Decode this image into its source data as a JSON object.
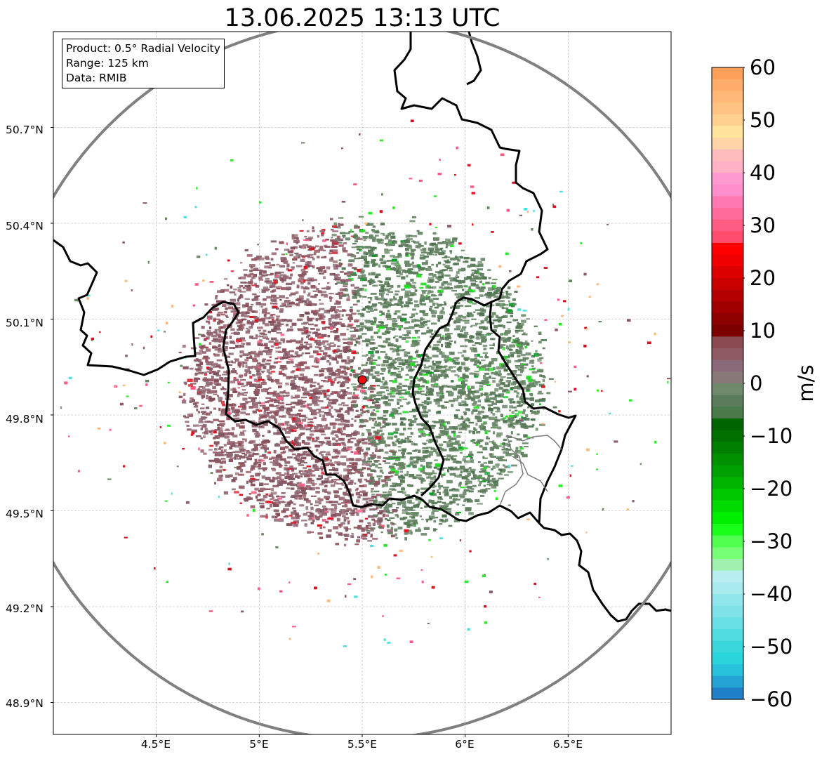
{
  "title": "13.06.2025 13:13 UTC",
  "info": {
    "product": "Product: 0.5° Radial Velocity",
    "range": "Range: 125 km",
    "data": "Data: RMIB"
  },
  "map": {
    "lon_range": [
      4.0,
      7.0
    ],
    "lat_range": [
      48.8,
      51.0
    ],
    "lat_ticks": [
      "50.7°N",
      "50.4°N",
      "50.1°N",
      "49.8°N",
      "49.5°N",
      "49.2°N",
      "48.9°N"
    ],
    "lon_ticks": [
      "4.5°E",
      "5°E",
      "5.5°E",
      "6°E",
      "6.5°E"
    ],
    "radar_site": {
      "lon": 5.5,
      "lat": 49.91
    },
    "range_km": 125,
    "gridlines": true
  },
  "colorbar": {
    "label": "m/s",
    "ticks": [
      "60",
      "50",
      "40",
      "30",
      "20",
      "10",
      "0",
      "−10",
      "−20",
      "−30",
      "−40",
      "−50",
      "−60"
    ],
    "vmin": -60,
    "vmax": 60,
    "colors_top_to_bottom": [
      "#ffa05a",
      "#ffab6a",
      "#ffb878",
      "#ffc484",
      "#ffd18f",
      "#ffe49b",
      "#ffd5a8",
      "#ffbcbc",
      "#ffb2c6",
      "#ff99d0",
      "#ff8ecd",
      "#ff78b2",
      "#ff6c9b",
      "#ff5c84",
      "#ff4c6c",
      "#ff0000",
      "#f00000",
      "#dc0000",
      "#c80000",
      "#b40000",
      "#a00000",
      "#8c0000",
      "#7c0000",
      "#8a4a50",
      "#8f5a63",
      "#8a6a78",
      "#887878",
      "#6e8a6a",
      "#5a7c5a",
      "#4a7a4a",
      "#006400",
      "#007000",
      "#008000",
      "#009000",
      "#00a000",
      "#00b400",
      "#00c800",
      "#00dc00",
      "#00f000",
      "#1aff1a",
      "#50ff50",
      "#78ff78",
      "#a0f0b0",
      "#b8eef0",
      "#a8eaee",
      "#90e6ea",
      "#7ee2e6",
      "#68dfe2",
      "#50dde0",
      "#3ad8dc",
      "#2ad6dc",
      "#28c2dc",
      "#24a4d4",
      "#2080c8"
    ]
  }
}
